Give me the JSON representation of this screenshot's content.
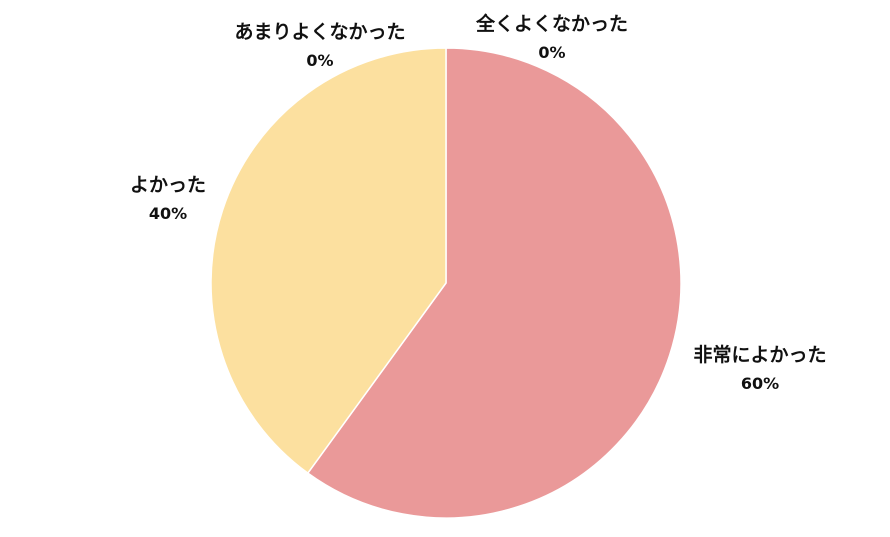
{
  "chart_data": {
    "type": "pie",
    "title": "",
    "start_angle_deg": 0,
    "direction": "clockwise",
    "slices": [
      {
        "label": "非常によかった",
        "value": 60,
        "value_label": "60%",
        "color": "#EA9999"
      },
      {
        "label": "よかった",
        "value": 40,
        "value_label": "40%",
        "color": "#FCE09F"
      },
      {
        "label": "あまりよくなかった",
        "value": 0,
        "value_label": "0%",
        "color": "#B7D7A8"
      },
      {
        "label": "全くよくなかった",
        "value": 0,
        "value_label": "0%",
        "color": "#9FC5E8"
      }
    ],
    "legend": "none"
  }
}
